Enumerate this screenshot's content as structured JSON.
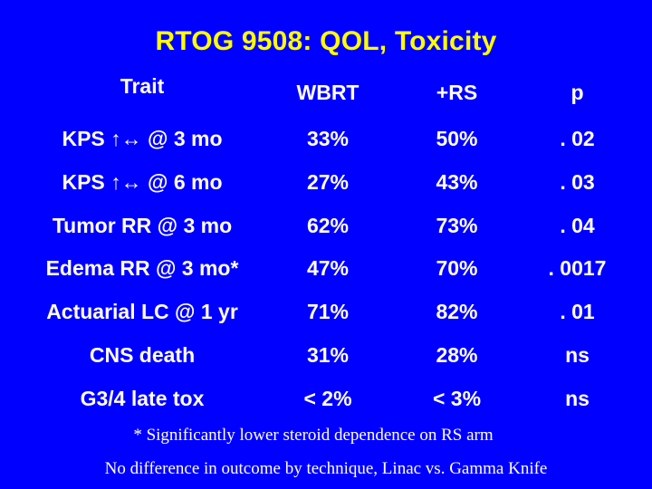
{
  "slide": {
    "title": "RTOG 9508: QOL, Toxicity",
    "background_color": "#0000ff",
    "title_color": "#ffff00",
    "text_color": "#ffffff"
  },
  "table": {
    "headers": [
      "Trait",
      "WBRT",
      "+RS",
      "p"
    ],
    "rows": [
      [
        "KPS ↑↔ @ 3 mo",
        "33%",
        "50%",
        ". 02"
      ],
      [
        "KPS ↑↔ @ 6 mo",
        "27%",
        "43%",
        ". 03"
      ],
      [
        "Tumor RR @ 3 mo",
        "62%",
        "73%",
        ". 04"
      ],
      [
        "Edema RR @ 3 mo*",
        "47%",
        "70%",
        ". 0017"
      ],
      [
        "Actuarial LC @ 1 yr",
        "71%",
        "82%",
        ". 01"
      ],
      [
        "CNS death",
        "31%",
        "28%",
        "ns"
      ],
      [
        "G3/4 late tox",
        "< 2%",
        "< 3%",
        "ns"
      ]
    ]
  },
  "footnotes": {
    "line1": "* Significantly lower steroid dependence on RS arm",
    "line2": "No difference in outcome by technique, Linac vs. Gamma Knife"
  }
}
